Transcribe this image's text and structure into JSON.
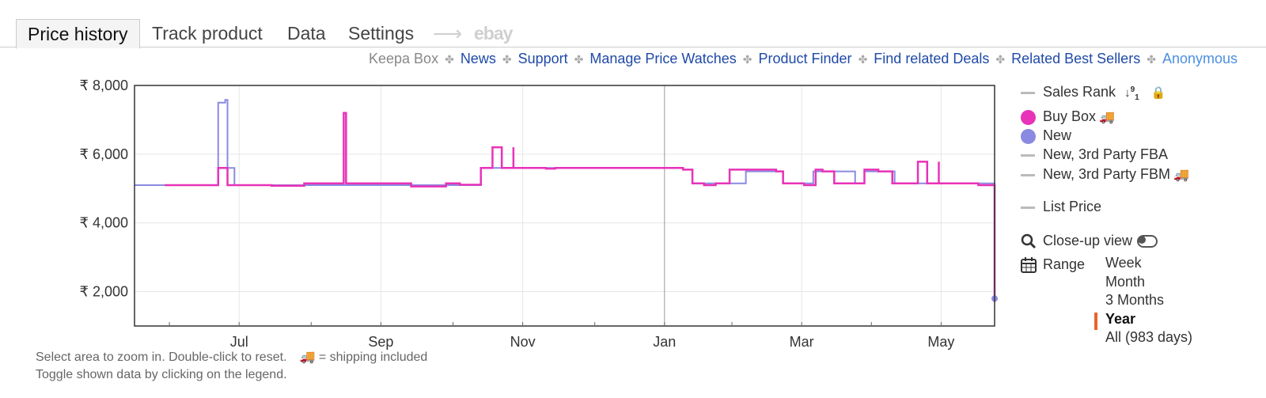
{
  "tabs": {
    "price_history": "Price history",
    "track_product": "Track product",
    "data": "Data",
    "settings": "Settings",
    "ebay": "ebay"
  },
  "links": {
    "keepa_box": "Keepa Box",
    "news": "News",
    "support": "Support",
    "manage_price_watches": "Manage Price Watches",
    "product_finder": "Product Finder",
    "find_related_deals": "Find related Deals",
    "related_best_sellers": "Related Best Sellers",
    "anonymous": "Anonymous"
  },
  "legend": {
    "sales_rank": "Sales Rank",
    "buy_box": "Buy Box",
    "new": "New",
    "new_fba": "New, 3rd Party FBA",
    "new_fbm": "New, 3rd Party FBM",
    "list_price": "List Price",
    "closeup": "Close-up view",
    "range_label": "Range",
    "ranges": [
      "Week",
      "Month",
      "3 Months",
      "Year",
      "All (983 days)"
    ],
    "selected_range": "Year",
    "colors": {
      "buy_box": "#e832b8",
      "new": "#8a8ae0",
      "inactive": "#bbbbbb",
      "range_marker": "#e8652a"
    }
  },
  "notes": {
    "line1": "Select area to zoom in. Double-click to reset.",
    "truck_note": "= shipping included",
    "line2": "Toggle shown data by clicking on the legend."
  },
  "chart_data": {
    "type": "line",
    "currency": "₹",
    "y_ticks": [
      "₹ 2,000",
      "₹ 4,000",
      "₹ 6,000",
      "₹ 8,000"
    ],
    "y_tick_values": [
      2000,
      4000,
      6000,
      8000
    ],
    "ylim": [
      1000,
      8000
    ],
    "x_ticks": [
      "Jul",
      "Sep",
      "Nov",
      "Jan",
      "Mar",
      "May"
    ],
    "x_tick_days": [
      45,
      106,
      167,
      228,
      287,
      347
    ],
    "xlim": [
      0,
      370
    ],
    "series": [
      {
        "name": "Buy Box",
        "step": true,
        "points": [
          [
            13,
            5100
          ],
          [
            35,
            5100
          ],
          [
            36,
            5600
          ],
          [
            39,
            5600
          ],
          [
            40,
            5100
          ],
          [
            58,
            5100
          ],
          [
            59,
            5080
          ],
          [
            72,
            5080
          ],
          [
            73,
            5150
          ],
          [
            90,
            5150
          ],
          [
            90,
            7200
          ],
          [
            91,
            5150
          ],
          [
            118,
            5150
          ],
          [
            119,
            5060
          ],
          [
            133,
            5060
          ],
          [
            134,
            5150
          ],
          [
            139,
            5150
          ],
          [
            140,
            5110
          ],
          [
            148,
            5110
          ],
          [
            149,
            5600
          ],
          [
            153,
            5600
          ],
          [
            154,
            6200
          ],
          [
            157,
            6200
          ],
          [
            158,
            5600
          ],
          [
            162,
            5600
          ],
          [
            163,
            6200
          ],
          [
            163,
            5600
          ],
          [
            176,
            5600
          ],
          [
            177,
            5580
          ],
          [
            180,
            5580
          ],
          [
            181,
            5600
          ],
          [
            235,
            5600
          ],
          [
            236,
            5550
          ],
          [
            239,
            5550
          ],
          [
            240,
            5150
          ],
          [
            244,
            5150
          ],
          [
            245,
            5100
          ],
          [
            249,
            5100
          ],
          [
            250,
            5150
          ],
          [
            255,
            5150
          ],
          [
            256,
            5550
          ],
          [
            275,
            5550
          ],
          [
            276,
            5500
          ],
          [
            278,
            5500
          ],
          [
            279,
            5150
          ],
          [
            287,
            5150
          ],
          [
            288,
            5100
          ],
          [
            292,
            5100
          ],
          [
            293,
            5550
          ],
          [
            295,
            5550
          ],
          [
            296,
            5500
          ],
          [
            300,
            5500
          ],
          [
            301,
            5150
          ],
          [
            313,
            5150
          ],
          [
            314,
            5550
          ],
          [
            319,
            5550
          ],
          [
            320,
            5500
          ],
          [
            325,
            5500
          ],
          [
            326,
            5150
          ],
          [
            336,
            5150
          ],
          [
            337,
            5780
          ],
          [
            340,
            5780
          ],
          [
            341,
            5150
          ],
          [
            345,
            5150
          ],
          [
            346,
            5780
          ],
          [
            346,
            5150
          ],
          [
            362,
            5150
          ],
          [
            363,
            5100
          ],
          [
            370,
            5100
          ],
          [
            371,
            2000
          ],
          [
            373,
            2000
          ],
          [
            374,
            1700
          ],
          [
            375,
            1800
          ],
          [
            382,
            1800
          ]
        ]
      },
      {
        "name": "New",
        "step": true,
        "points": [
          [
            0,
            5100
          ],
          [
            35,
            5100
          ],
          [
            36,
            7500
          ],
          [
            38,
            7500
          ],
          [
            39,
            7580
          ],
          [
            40,
            5600
          ],
          [
            42,
            5600
          ],
          [
            43,
            5100
          ],
          [
            148,
            5100
          ],
          [
            149,
            5600
          ],
          [
            163,
            5600
          ],
          [
            235,
            5600
          ],
          [
            236,
            5550
          ],
          [
            239,
            5550
          ],
          [
            240,
            5150
          ],
          [
            262,
            5150
          ],
          [
            263,
            5500
          ],
          [
            278,
            5500
          ],
          [
            279,
            5150
          ],
          [
            291,
            5150
          ],
          [
            292,
            5500
          ],
          [
            309,
            5500
          ],
          [
            310,
            5150
          ],
          [
            313,
            5150
          ],
          [
            314,
            5500
          ],
          [
            326,
            5500
          ],
          [
            327,
            5150
          ],
          [
            370,
            5150
          ],
          [
            371,
            2000
          ],
          [
            374,
            1800
          ],
          [
            382,
            1800
          ]
        ]
      }
    ]
  }
}
